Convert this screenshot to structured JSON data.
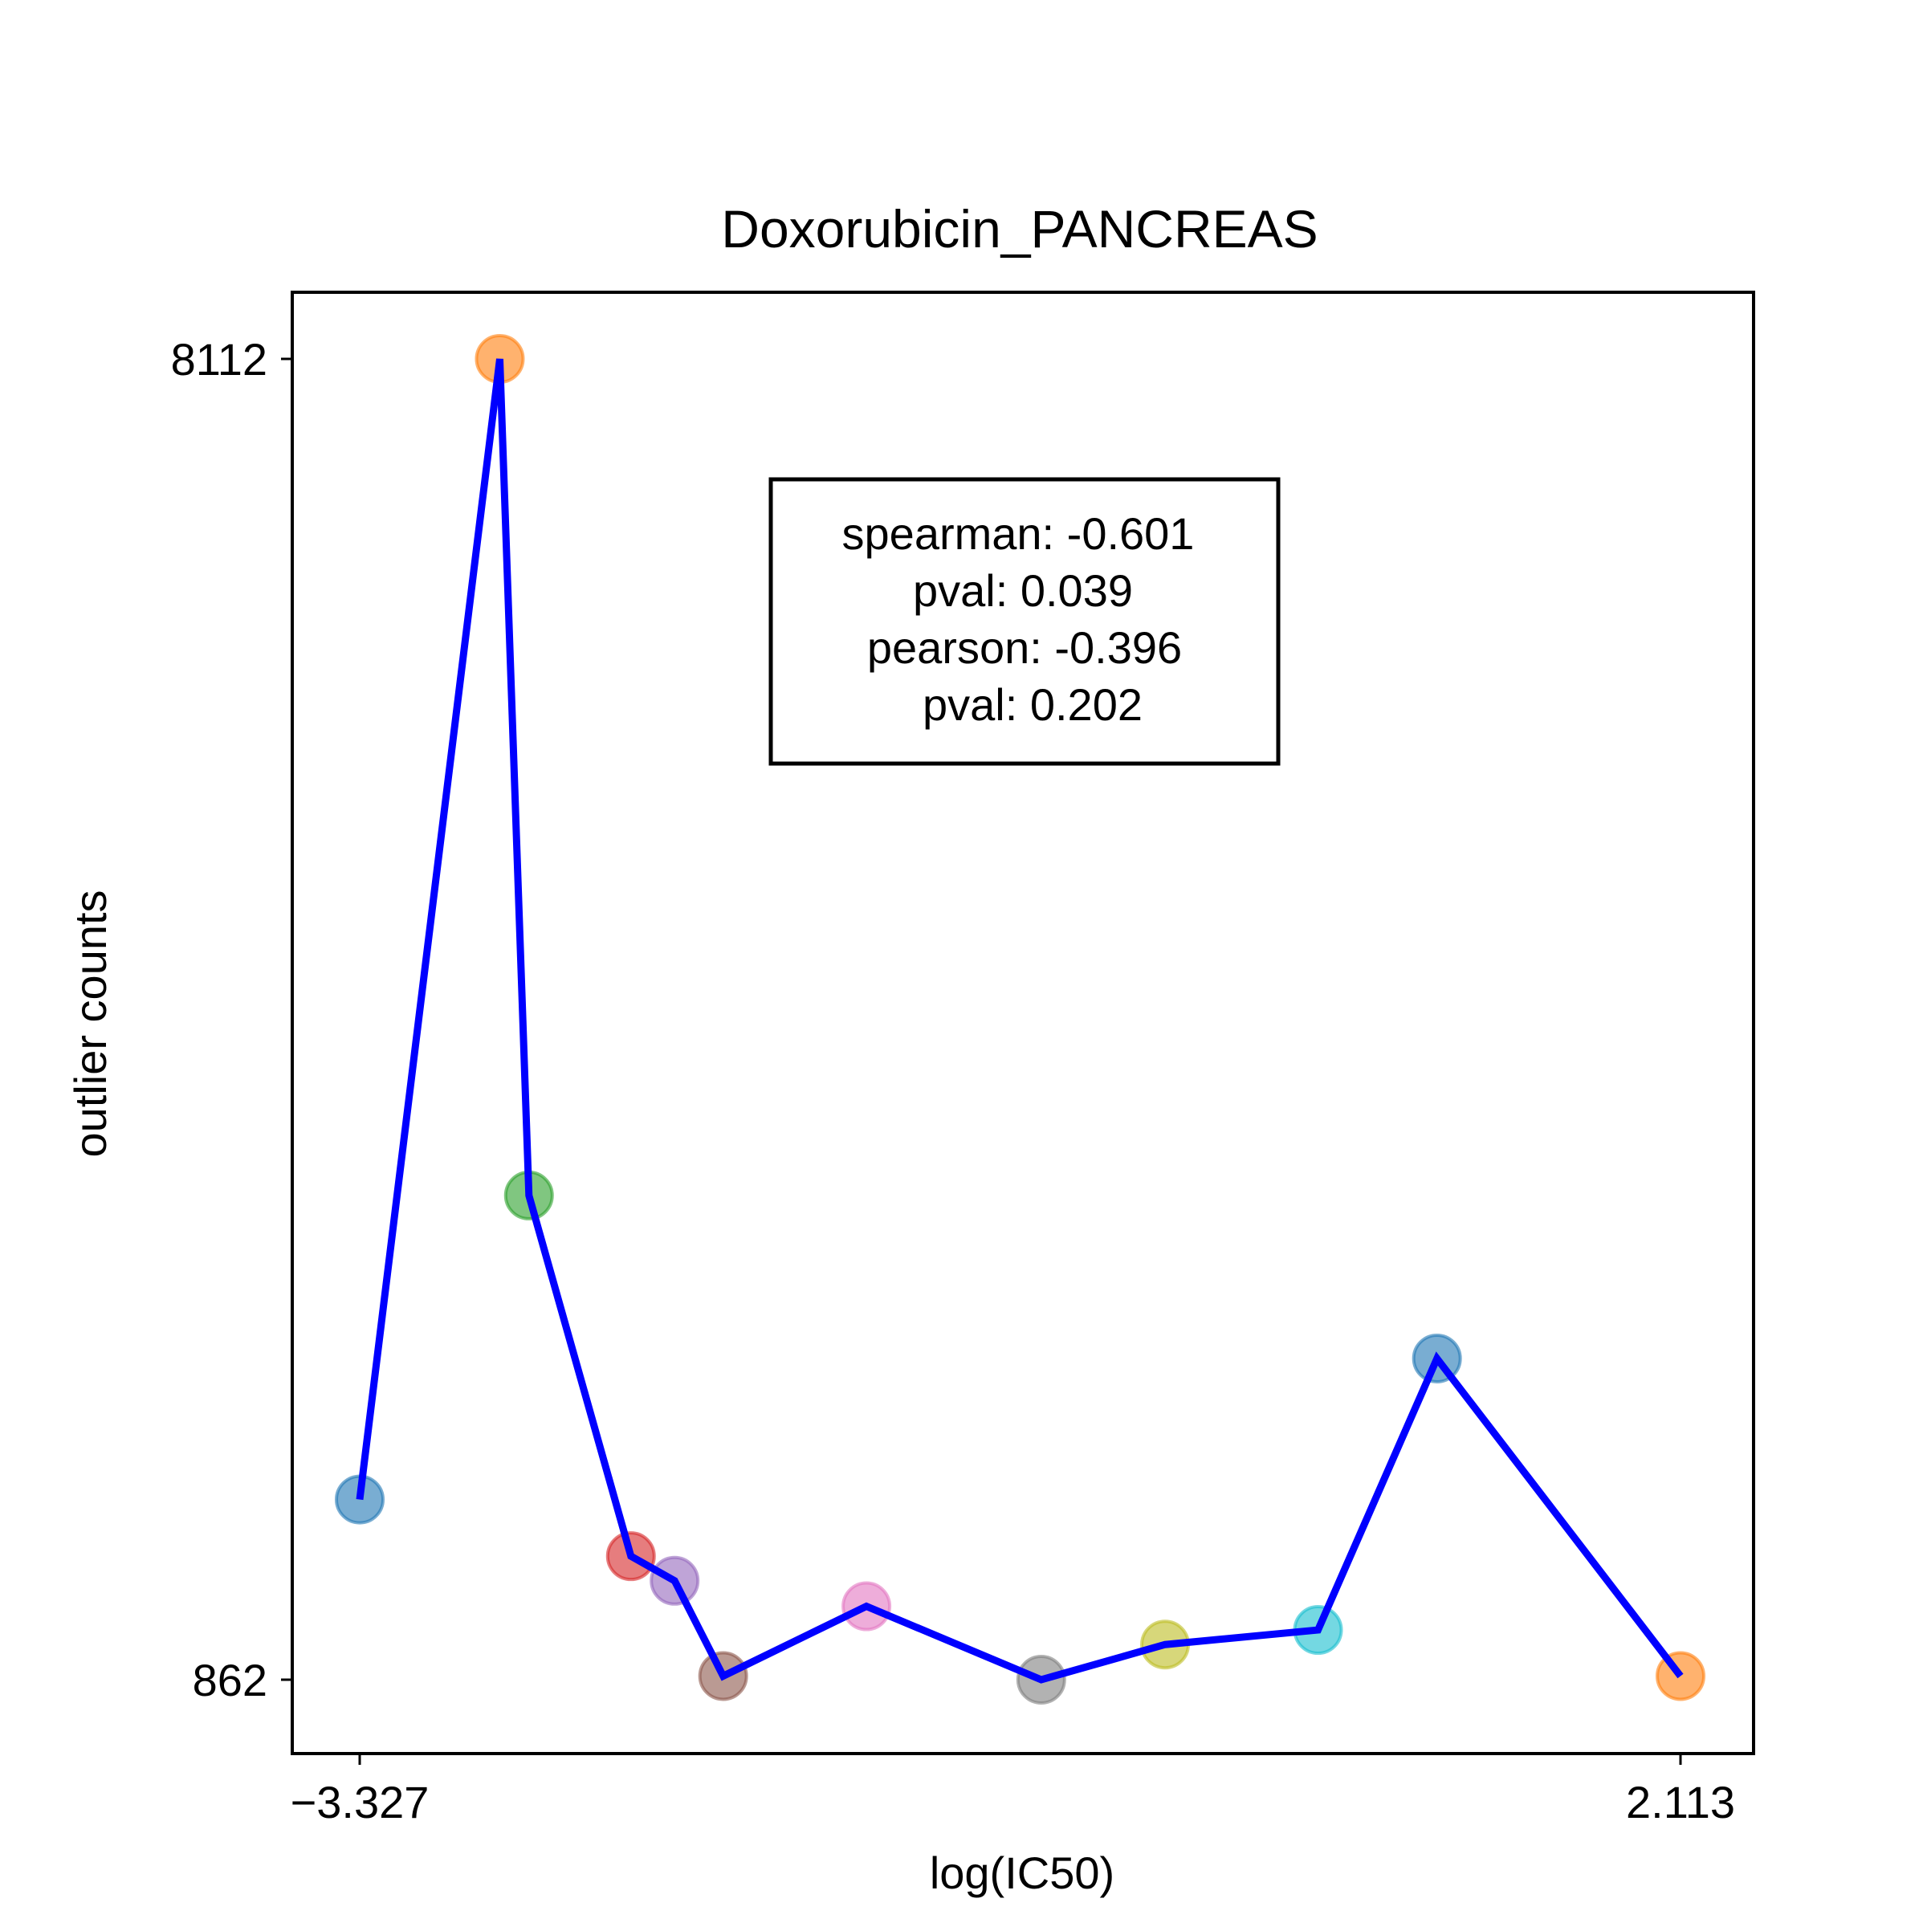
{
  "chart_data": {
    "type": "scatter",
    "title": "Doxorubicin_PANCREAS",
    "xlabel": "log(IC50)",
    "ylabel": "outlier counts",
    "xlim": [
      -3.327,
      2.113
    ],
    "ylim": [
      862,
      8112
    ],
    "x_ticks": [
      "−3.327",
      "2.113"
    ],
    "y_ticks": [
      "8112",
      "862"
    ],
    "grid": false,
    "line_color": "#0000ff",
    "points": [
      {
        "x": -3.327,
        "y": 1851,
        "color": "#1f77b4"
      },
      {
        "x": -2.75,
        "y": 8112,
        "color": "#ff7f0e"
      },
      {
        "x": -2.63,
        "y": 3520,
        "color": "#2ca02c"
      },
      {
        "x": -2.21,
        "y": 1540,
        "color": "#d62728"
      },
      {
        "x": -2.03,
        "y": 1405,
        "color": "#9467bd"
      },
      {
        "x": -1.83,
        "y": 882,
        "color": "#8c564b"
      },
      {
        "x": -1.24,
        "y": 1265,
        "color": "#e377c2"
      },
      {
        "x": -0.52,
        "y": 862,
        "color": "#7f7f7f"
      },
      {
        "x": -0.01,
        "y": 1055,
        "color": "#bcbd22"
      },
      {
        "x": 0.62,
        "y": 1135,
        "color": "#17becf"
      },
      {
        "x": 1.11,
        "y": 2625,
        "color": "#1f77b4"
      },
      {
        "x": 2.113,
        "y": 882,
        "color": "#ff7f0e"
      }
    ],
    "stats": [
      "spearman: -0.601",
      "pval: 0.039",
      "pearson: -0.396",
      "pval: 0.202"
    ]
  }
}
